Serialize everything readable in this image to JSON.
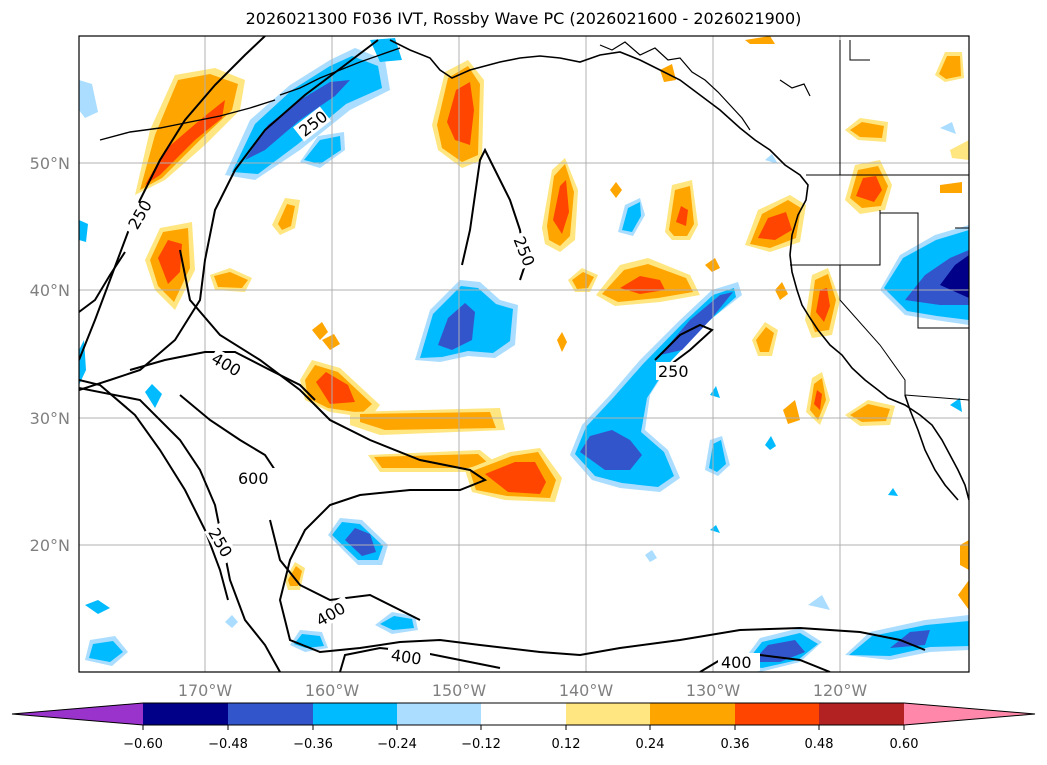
{
  "title": "2026021300 F036 IVT, Rossby Wave PC (2026021600 - 2026021900)",
  "lat_labels": [
    "50°N",
    "40°N",
    "30°N",
    "20°N"
  ],
  "lon_labels": [
    "170°W",
    "160°W",
    "150°W",
    "140°W",
    "130°W",
    "120°W"
  ],
  "contour_labels": [
    "250",
    "250",
    "250",
    "250",
    "400",
    "600",
    "250",
    "400",
    "400",
    "400"
  ],
  "colorbar": {
    "ticks": [
      "−0.60",
      "−0.48",
      "−0.36",
      "−0.24",
      "−0.12",
      "0.12",
      "0.24",
      "0.36",
      "0.48",
      "0.60"
    ],
    "colors": [
      "#9933cc",
      "#000088",
      "#3355cc",
      "#00bbff",
      "#aaddff",
      "#ffffff",
      "#ffe680",
      "#ffa500",
      "#ff4500",
      "#b22222",
      "#ff88aa"
    ]
  }
}
